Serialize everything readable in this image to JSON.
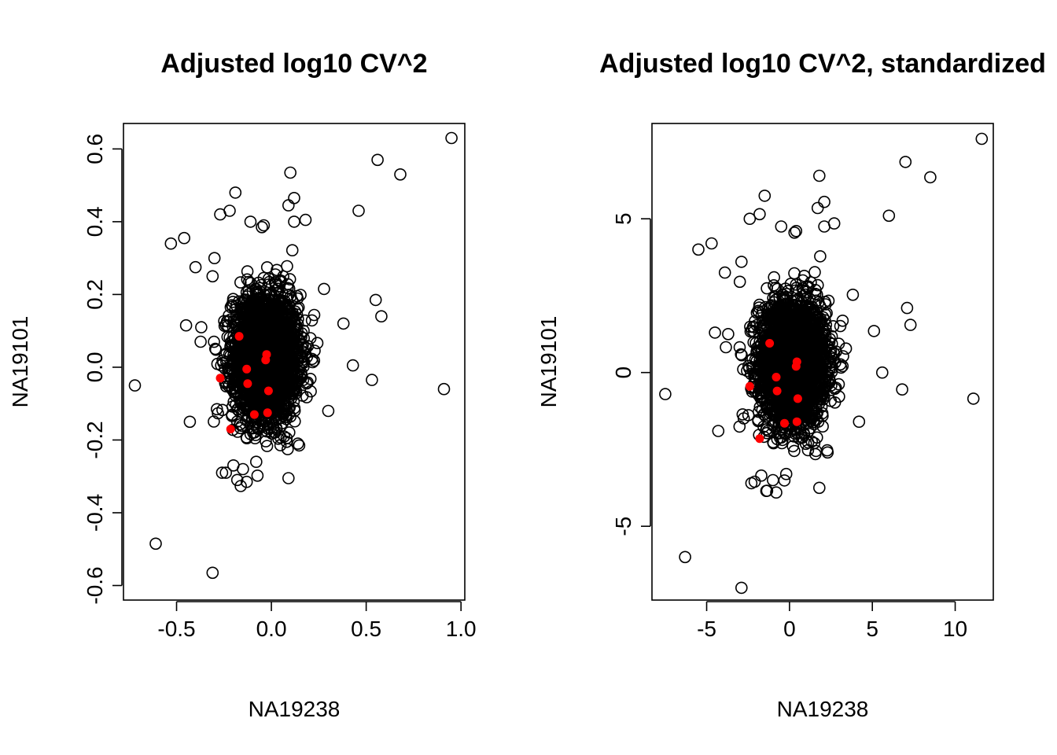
{
  "chart_data": [
    {
      "type": "scatter",
      "title": "Adjusted log10 CV^2",
      "xlabel": "NA19238",
      "ylabel": "NA19101",
      "xlim": [
        -0.78,
        1.02
      ],
      "ylim": [
        -0.64,
        0.67
      ],
      "xticks": [
        "-0.5",
        "0.0",
        "0.5",
        "1.0"
      ],
      "yticks": [
        "-0.6",
        "-0.4",
        "-0.2",
        "0.0",
        "0.2",
        "0.4",
        "0.6"
      ],
      "grid": false,
      "legend": "none",
      "colors": {
        "points": "#000000",
        "highlight": "#ff0000"
      },
      "cloud": {
        "n": 2600,
        "x_mean": -0.03,
        "x_sd": 0.085,
        "y_mean": 0.03,
        "y_sd": 0.085
      },
      "outliers": [
        [
          0.95,
          0.63
        ],
        [
          0.56,
          0.57
        ],
        [
          0.68,
          0.53
        ],
        [
          0.1,
          0.535
        ],
        [
          -0.19,
          0.48
        ],
        [
          0.12,
          0.465
        ],
        [
          0.09,
          0.445
        ],
        [
          -0.22,
          0.43
        ],
        [
          -0.27,
          0.42
        ],
        [
          0.46,
          0.43
        ],
        [
          0.18,
          0.405
        ],
        [
          0.12,
          0.4
        ],
        [
          -0.11,
          0.4
        ],
        [
          -0.04,
          0.39
        ],
        [
          -0.05,
          0.385
        ],
        [
          -0.46,
          0.355
        ],
        [
          -0.53,
          0.34
        ],
        [
          -0.4,
          0.275
        ],
        [
          -0.3,
          0.3
        ],
        [
          -0.31,
          0.25
        ],
        [
          -0.45,
          0.115
        ],
        [
          -0.37,
          0.11
        ],
        [
          0.55,
          0.185
        ],
        [
          0.58,
          0.14
        ],
        [
          0.38,
          0.12
        ],
        [
          0.43,
          0.005
        ],
        [
          -0.72,
          -0.05
        ],
        [
          0.53,
          -0.035
        ],
        [
          0.91,
          -0.06
        ],
        [
          0.3,
          -0.12
        ],
        [
          -0.43,
          -0.15
        ],
        [
          -0.26,
          -0.29
        ],
        [
          -0.15,
          -0.28
        ],
        [
          -0.18,
          -0.31
        ],
        [
          -0.13,
          -0.315
        ],
        [
          0.09,
          -0.305
        ],
        [
          -0.08,
          -0.26
        ],
        [
          -0.61,
          -0.485
        ],
        [
          -0.31,
          -0.565
        ],
        [
          0.14,
          -0.21
        ],
        [
          0.08,
          -0.205
        ],
        [
          -0.24,
          -0.29
        ],
        [
          -0.2,
          -0.27
        ]
      ],
      "highlight": [
        [
          -0.17,
          0.085
        ],
        [
          -0.025,
          0.035
        ],
        [
          -0.03,
          0.02
        ],
        [
          -0.13,
          -0.005
        ],
        [
          -0.27,
          -0.03
        ],
        [
          -0.125,
          -0.045
        ],
        [
          -0.015,
          -0.065
        ],
        [
          -0.09,
          -0.13
        ],
        [
          -0.02,
          -0.125
        ],
        [
          -0.215,
          -0.17
        ]
      ]
    },
    {
      "type": "scatter",
      "title": "Adjusted log10 CV^2, standardized",
      "xlabel": "NA19238",
      "ylabel": "NA19101",
      "xlim": [
        -8.3,
        12.3
      ],
      "ylim": [
        -7.4,
        8.1
      ],
      "xticks": [
        "-5",
        "0",
        "5",
        "10"
      ],
      "yticks": [
        "-5",
        "0",
        "5"
      ],
      "grid": false,
      "legend": "none",
      "colors": {
        "points": "#000000",
        "highlight": "#ff0000"
      },
      "cloud": {
        "n": 2600,
        "x_mean": 0.2,
        "x_sd": 1.0,
        "y_mean": 0.35,
        "y_sd": 1.0
      },
      "outliers": [
        [
          11.6,
          7.6
        ],
        [
          7.0,
          6.85
        ],
        [
          8.5,
          6.35
        ],
        [
          1.8,
          6.4
        ],
        [
          -1.5,
          5.75
        ],
        [
          2.1,
          5.55
        ],
        [
          1.7,
          5.35
        ],
        [
          -1.8,
          5.15
        ],
        [
          -2.4,
          5.0
        ],
        [
          6.0,
          5.1
        ],
        [
          2.7,
          4.85
        ],
        [
          2.1,
          4.75
        ],
        [
          -0.5,
          4.75
        ],
        [
          0.4,
          4.6
        ],
        [
          0.3,
          4.55
        ],
        [
          -4.7,
          4.2
        ],
        [
          -5.5,
          4.0
        ],
        [
          -3.9,
          3.25
        ],
        [
          -2.9,
          3.6
        ],
        [
          -3.0,
          2.95
        ],
        [
          -4.5,
          1.3
        ],
        [
          -3.7,
          1.25
        ],
        [
          7.1,
          2.1
        ],
        [
          7.3,
          1.55
        ],
        [
          5.1,
          1.35
        ],
        [
          5.6,
          0.0
        ],
        [
          -7.5,
          -0.7
        ],
        [
          6.8,
          -0.55
        ],
        [
          11.1,
          -0.85
        ],
        [
          4.2,
          -1.6
        ],
        [
          -4.3,
          -1.9
        ],
        [
          -2.3,
          -3.6
        ],
        [
          -1.0,
          -3.5
        ],
        [
          -1.4,
          -3.85
        ],
        [
          -0.8,
          -3.9
        ],
        [
          1.8,
          -3.75
        ],
        [
          -0.2,
          -3.3
        ],
        [
          -6.3,
          -6.0
        ],
        [
          -2.9,
          -7.0
        ],
        [
          2.3,
          -2.6
        ],
        [
          1.6,
          -2.55
        ],
        [
          -2.1,
          -3.55
        ],
        [
          -1.7,
          -3.35
        ]
      ],
      "highlight": [
        [
          -1.2,
          0.95
        ],
        [
          0.45,
          0.35
        ],
        [
          0.4,
          0.2
        ],
        [
          -0.8,
          -0.15
        ],
        [
          -2.4,
          -0.45
        ],
        [
          -0.75,
          -0.6
        ],
        [
          0.5,
          -0.85
        ],
        [
          -0.3,
          -1.65
        ],
        [
          0.45,
          -1.6
        ],
        [
          -1.8,
          -2.15
        ]
      ]
    }
  ]
}
